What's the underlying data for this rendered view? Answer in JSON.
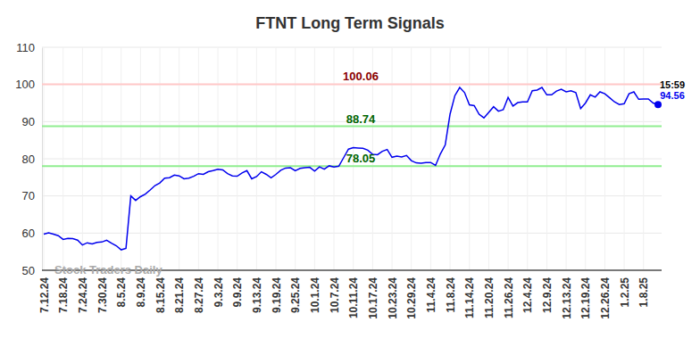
{
  "chart_data": {
    "type": "line",
    "title": "FTNT Long Term Signals",
    "watermark": "Stock Traders Daily",
    "time_label": "15:59",
    "color": "#0000ee",
    "grid": true,
    "categories": [
      "7.12.24",
      null,
      null,
      null,
      "7.18.24",
      null,
      null,
      null,
      "7.24.24",
      null,
      null,
      null,
      "7.30.24",
      null,
      null,
      null,
      "8.5.24",
      null,
      null,
      null,
      "8.9.24",
      null,
      null,
      null,
      "8.15.24",
      null,
      null,
      null,
      "8.21.24",
      null,
      null,
      null,
      "8.27.24",
      null,
      null,
      null,
      "9.3.24",
      null,
      null,
      null,
      "9.9.24",
      null,
      null,
      null,
      "9.13.24",
      null,
      null,
      null,
      "9.19.24",
      null,
      null,
      null,
      "9.25.24",
      null,
      null,
      null,
      "10.1.24",
      null,
      null,
      null,
      "10.7.24",
      null,
      null,
      null,
      "10.11.24",
      null,
      null,
      null,
      "10.17.24",
      null,
      null,
      null,
      "10.23.24",
      null,
      null,
      null,
      "10.29.24",
      null,
      null,
      null,
      "11.4.24",
      null,
      null,
      null,
      "11.8.24",
      null,
      null,
      null,
      "11.14.24",
      null,
      null,
      null,
      "11.20.24",
      null,
      null,
      null,
      "11.26.24",
      null,
      null,
      null,
      "12.4.24",
      null,
      null,
      null,
      "12.9.24",
      null,
      null,
      null,
      "12.13.24",
      null,
      null,
      null,
      "12.19.24",
      null,
      null,
      null,
      "12.26.24",
      null,
      null,
      null,
      "1.2.25",
      null,
      null,
      null,
      "1.8.25",
      null,
      null,
      null
    ],
    "values": [
      59.7,
      60.1,
      59.7,
      59.3,
      58.3,
      58.6,
      58.5,
      58.1,
      56.8,
      57.4,
      57.1,
      57.5,
      57.6,
      58.1,
      57.3,
      56.6,
      55.5,
      55.9,
      70.0,
      68.8,
      69.8,
      70.5,
      71.6,
      72.8,
      73.5,
      74.8,
      74.9,
      75.6,
      75.4,
      74.6,
      74.8,
      75.3,
      76.0,
      75.8,
      76.5,
      76.8,
      77.2,
      77.0,
      76.0,
      75.4,
      75.3,
      76.2,
      76.8,
      74.6,
      75.2,
      76.5,
      75.8,
      74.9,
      75.8,
      76.9,
      77.5,
      77.6,
      76.8,
      77.4,
      77.6,
      77.7,
      76.7,
      77.8,
      77.2,
      78.1,
      77.8,
      78.0,
      80.3,
      82.6,
      83.0,
      82.9,
      82.8,
      82.3,
      81.2,
      81.1,
      82.0,
      82.5,
      80.4,
      80.7,
      80.5,
      80.9,
      79.5,
      78.9,
      78.8,
      79.0,
      79.0,
      78.2,
      81.3,
      83.7,
      92.0,
      97.0,
      99.2,
      97.8,
      94.5,
      94.3,
      92.0,
      91.0,
      92.5,
      94.0,
      92.8,
      93.2,
      96.5,
      94.2,
      95.1,
      95.3,
      95.3,
      98.3,
      98.5,
      99.2,
      97.2,
      97.2,
      98.2,
      98.7,
      98.0,
      98.3,
      97.8,
      93.5,
      95.0,
      97.2,
      96.6,
      98.0,
      97.5,
      96.4,
      95.3,
      94.6,
      94.8,
      97.5,
      98.0,
      96.0,
      96.1,
      96.1,
      95.0,
      94.56
    ],
    "ylim": [
      50,
      110
    ],
    "yticks": [
      50,
      60,
      70,
      80,
      90,
      100,
      110
    ],
    "annotations": [
      {
        "text": "100.06",
        "value": 100.06,
        "color": "#8b0000",
        "line_color": "#ffc8c8"
      },
      {
        "text": "88.74",
        "value": 88.74,
        "color": "#006400",
        "line_color": "#90ee90"
      },
      {
        "text": "78.05",
        "value": 78.05,
        "color": "#006400",
        "line_color": "#90ee90"
      }
    ]
  }
}
